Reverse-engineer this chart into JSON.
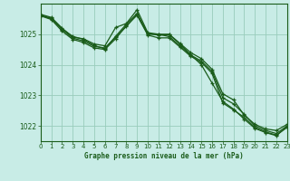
{
  "title": "Graphe pression niveau de la mer (hPa)",
  "background_color": "#c8ece6",
  "grid_color_major": "#99ccbb",
  "grid_color_minor": "#bbddcc",
  "line_color": "#1a5c1a",
  "xlim": [
    0,
    23
  ],
  "ylim": [
    1021.5,
    1026.0
  ],
  "yticks": [
    1022,
    1023,
    1024,
    1025
  ],
  "xticks": [
    0,
    1,
    2,
    3,
    4,
    5,
    6,
    7,
    8,
    9,
    10,
    11,
    12,
    13,
    14,
    15,
    16,
    17,
    18,
    19,
    20,
    21,
    22,
    23
  ],
  "series": [
    [
      1025.65,
      1025.55,
      1025.2,
      1024.9,
      1024.85,
      1024.68,
      1024.62,
      1025.22,
      1025.35,
      1025.8,
      1025.05,
      1025.0,
      1025.0,
      1024.7,
      1024.4,
      1024.2,
      1023.85,
      1023.05,
      1022.85,
      1022.35,
      1022.05,
      1021.9,
      1021.85,
      1022.05
    ],
    [
      1025.62,
      1025.52,
      1025.15,
      1024.87,
      1024.78,
      1024.6,
      1024.55,
      1024.9,
      1025.25,
      1025.65,
      1025.0,
      1025.0,
      1024.92,
      1024.62,
      1024.32,
      1024.12,
      1023.78,
      1022.92,
      1022.72,
      1022.38,
      1022.0,
      1021.85,
      1021.75,
      1022.0
    ],
    [
      1025.6,
      1025.48,
      1025.1,
      1024.83,
      1024.73,
      1024.55,
      1024.5,
      1024.85,
      1025.28,
      1025.62,
      1024.97,
      1024.88,
      1024.88,
      1024.58,
      1024.28,
      1024.08,
      1023.72,
      1022.75,
      1022.52,
      1022.28,
      1021.95,
      1021.8,
      1021.7,
      1021.95
    ],
    [
      1025.62,
      1025.5,
      1025.18,
      1024.93,
      1024.83,
      1024.63,
      1024.52,
      1024.93,
      1025.33,
      1025.68,
      1025.02,
      1024.97,
      1024.98,
      1024.68,
      1024.33,
      1024.0,
      1023.4,
      1022.8,
      1022.55,
      1022.22,
      1021.92,
      1021.78,
      1021.68,
      1021.98
    ]
  ]
}
